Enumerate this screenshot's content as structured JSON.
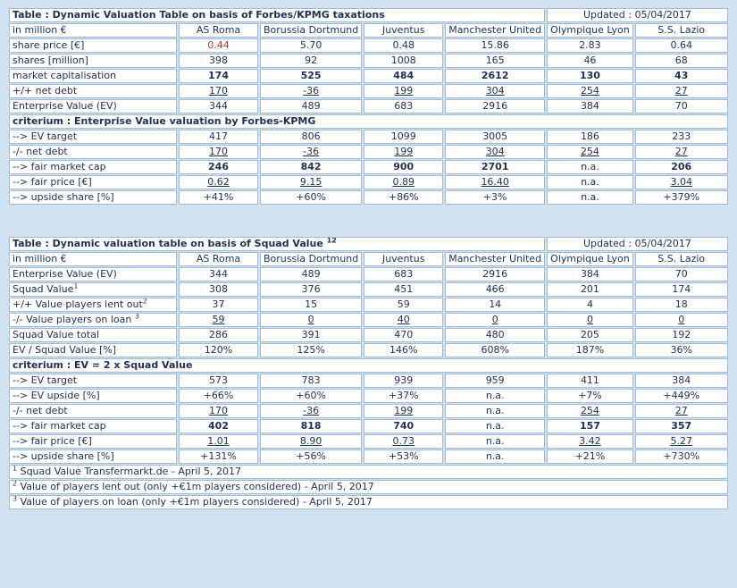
{
  "colors": {
    "page_bg": "#cfe2f2",
    "title_bar_bg": "#a8d1ee",
    "header_cell_bg": "#dbeaf8",
    "gray_cell_bg": "#d9d9d9",
    "cell_border": "#a3bcd6",
    "outer_border": "#82a9cf",
    "label_text": "#1d3f8e",
    "value_text": "#1d3058",
    "title_text": "#0e338c",
    "red_text": "#a53a38"
  },
  "tables": [
    {
      "name": "forbes-kpmg",
      "title": "Table : Dynamic Valuation Table on basis of Forbes/KPMG taxations",
      "title_sup": "",
      "updated": "Updated : 05/04/2017",
      "corner_label": "in million €",
      "columns": [
        "AS Roma",
        "Borussia Dortmund",
        "Juventus",
        "Manchester United",
        "Olympique Lyon",
        "S.S. Lazio"
      ],
      "rows": [
        {
          "label": "share price [€]",
          "values": [
            "0.44",
            "5.70",
            "0.48",
            "15.86",
            "2.83",
            "0.64"
          ],
          "red_cells": [
            0
          ]
        },
        {
          "label": "shares [million]",
          "values": [
            "398",
            "92",
            "1008",
            "165",
            "46",
            "68"
          ]
        },
        {
          "label": "market capitalisation",
          "values": [
            "174",
            "525",
            "484",
            "2612",
            "130",
            "43"
          ],
          "style": "bold"
        },
        {
          "label": "+/+ net debt",
          "values": [
            "170",
            "-36",
            "199",
            "304",
            "254",
            "27"
          ],
          "style": "underline"
        },
        {
          "label": "Enterprise Value (EV)",
          "values": [
            "344",
            "489",
            "683",
            "2916",
            "384",
            "70"
          ]
        },
        {
          "section": "criterium : Enterprise Value valuation by Forbes-KPMG"
        },
        {
          "label": "--> EV target",
          "values": [
            "417",
            "806",
            "1099",
            "3005",
            "186",
            "233"
          ],
          "bg": "gray"
        },
        {
          "label": "-/- net debt",
          "values": [
            "170",
            "-36",
            "199",
            "304",
            "254",
            "27"
          ],
          "style": "underline"
        },
        {
          "label": "--> fair market cap",
          "values": [
            "246",
            "842",
            "900",
            "2701",
            "n.a.",
            "206"
          ],
          "style": "bold"
        },
        {
          "label": "--> fair price [€]",
          "values": [
            "0.62",
            "9.15",
            "0.89",
            "16.40",
            "n.a.",
            "3.04"
          ],
          "style": "underline"
        },
        {
          "label": "--> upside share [%]",
          "values": [
            "+41%",
            "+60%",
            "+86%",
            "+3%",
            "n.a.",
            "+379%"
          ],
          "bg": "gray"
        }
      ],
      "footnotes": []
    },
    {
      "name": "squad-value",
      "title": "Table : Dynamic valuation table on basis of Squad Value",
      "title_sup": "12",
      "updated": "Updated : 05/04/2017",
      "corner_label": "in million €",
      "columns": [
        "AS Roma",
        "Borussia Dortmund",
        "Juventus",
        "Manchester United",
        "Olympique Lyon",
        "S.S. Lazio"
      ],
      "rows": [
        {
          "label": "Enterprise Value (EV)",
          "values": [
            "344",
            "489",
            "683",
            "2916",
            "384",
            "70"
          ]
        },
        {
          "label": "Squad Value",
          "label_sup": "1",
          "values": [
            "308",
            "376",
            "451",
            "466",
            "201",
            "174"
          ]
        },
        {
          "label": "+/+ Value players lent out",
          "label_sup": "2",
          "values": [
            "37",
            "15",
            "59",
            "14",
            "4",
            "18"
          ]
        },
        {
          "label": "-/- Value players on loan ",
          "label_sup": "3",
          "values": [
            "59",
            "0",
            "40",
            "0",
            "0",
            "0"
          ],
          "style": "underline"
        },
        {
          "label": "Squad Value total",
          "values": [
            "286",
            "391",
            "470",
            "480",
            "205",
            "192"
          ]
        },
        {
          "label": "EV / Squad Value [%]",
          "values": [
            "120%",
            "125%",
            "146%",
            "608%",
            "187%",
            "36%"
          ]
        },
        {
          "section": "criterium : EV = 2 x Squad Value"
        },
        {
          "label": "--> EV target",
          "values": [
            "573",
            "783",
            "939",
            "959",
            "411",
            "384"
          ],
          "bg": "gray"
        },
        {
          "label": "--> EV upside [%]",
          "values": [
            "+66%",
            "+60%",
            "+37%",
            "n.a.",
            "+7%",
            "+449%"
          ]
        },
        {
          "label": "-/- net debt",
          "values": [
            "170",
            "-36",
            "199",
            "n.a.",
            "254",
            "27"
          ],
          "style": "underline"
        },
        {
          "label": "--> fair market cap",
          "values": [
            "402",
            "818",
            "740",
            "n.a.",
            "157",
            "357"
          ],
          "style": "bold"
        },
        {
          "label": "--> fair price [€]",
          "values": [
            "1.01",
            "8.90",
            "0.73",
            "n.a.",
            "3.42",
            "5.27"
          ],
          "style": "underline"
        },
        {
          "label": "--> upside share [%]",
          "values": [
            "+131%",
            "+56%",
            "+53%",
            "n.a.",
            "+21%",
            "+730%"
          ],
          "bg": "gray"
        }
      ],
      "footnotes": [
        {
          "sup": "1",
          "text": " Squad Value Transfermarkt.de - April 5, 2017"
        },
        {
          "sup": "2",
          "text": " Value of players lent out (only +€1m players considered) - April 5, 2017"
        },
        {
          "sup": "3",
          "text": " Value of players on loan (only +€1m players considered) - April 5, 2017"
        }
      ]
    }
  ]
}
